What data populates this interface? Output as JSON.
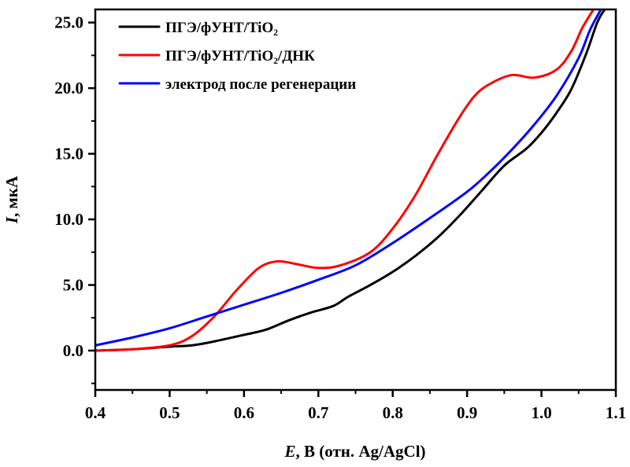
{
  "chart_data": {
    "type": "line",
    "xlabel": {
      "var": "E",
      "rest": ", В (отн. Ag/AgCl)"
    },
    "ylabel": {
      "var": "I",
      "rest": ", мкА"
    },
    "xlim": [
      0.4,
      1.1
    ],
    "ylim": [
      -3.0,
      26.0
    ],
    "x_ticks": [
      "0.4",
      "0.5",
      "0.6",
      "0.7",
      "0.8",
      "0.9",
      "1.0",
      "1.1"
    ],
    "y_ticks": [
      "0.0",
      "5.0",
      "10.0",
      "15.0",
      "20.0",
      "25.0"
    ],
    "grid": false,
    "legend_position": "top-left",
    "series": [
      {
        "name": "ПГЭ/фУНТ/TiO₂",
        "color": "#000000",
        "points": [
          [
            0.4,
            0.0
          ],
          [
            0.45,
            0.1
          ],
          [
            0.5,
            0.3
          ],
          [
            0.53,
            0.4
          ],
          [
            0.56,
            0.7
          ],
          [
            0.6,
            1.2
          ],
          [
            0.63,
            1.6
          ],
          [
            0.66,
            2.3
          ],
          [
            0.69,
            2.9
          ],
          [
            0.72,
            3.4
          ],
          [
            0.74,
            4.1
          ],
          [
            0.77,
            5.0
          ],
          [
            0.8,
            6.0
          ],
          [
            0.83,
            7.2
          ],
          [
            0.86,
            8.6
          ],
          [
            0.89,
            10.3
          ],
          [
            0.92,
            12.2
          ],
          [
            0.95,
            14.1
          ],
          [
            0.98,
            15.4
          ],
          [
            1.0,
            16.6
          ],
          [
            1.02,
            18.1
          ],
          [
            1.04,
            19.9
          ],
          [
            1.06,
            22.6
          ],
          [
            1.075,
            25.0
          ],
          [
            1.085,
            26.0
          ]
        ]
      },
      {
        "name": "ПГЭ/фУНТ/TiO₂/ДНК",
        "color": "#ff0000",
        "points": [
          [
            0.4,
            0.0
          ],
          [
            0.45,
            0.1
          ],
          [
            0.5,
            0.4
          ],
          [
            0.53,
            1.1
          ],
          [
            0.56,
            2.6
          ],
          [
            0.59,
            4.6
          ],
          [
            0.62,
            6.3
          ],
          [
            0.645,
            6.8
          ],
          [
            0.67,
            6.6
          ],
          [
            0.7,
            6.3
          ],
          [
            0.73,
            6.5
          ],
          [
            0.77,
            7.5
          ],
          [
            0.8,
            9.3
          ],
          [
            0.83,
            11.8
          ],
          [
            0.86,
            14.9
          ],
          [
            0.89,
            17.8
          ],
          [
            0.91,
            19.4
          ],
          [
            0.93,
            20.3
          ],
          [
            0.96,
            21.0
          ],
          [
            0.99,
            20.8
          ],
          [
            1.02,
            21.4
          ],
          [
            1.04,
            22.8
          ],
          [
            1.055,
            24.6
          ],
          [
            1.07,
            26.0
          ]
        ]
      },
      {
        "name": "электрод после регенерации",
        "color": "#0000ff",
        "points": [
          [
            0.4,
            0.4
          ],
          [
            0.45,
            1.0
          ],
          [
            0.5,
            1.7
          ],
          [
            0.55,
            2.6
          ],
          [
            0.6,
            3.5
          ],
          [
            0.65,
            4.4
          ],
          [
            0.7,
            5.4
          ],
          [
            0.75,
            6.5
          ],
          [
            0.8,
            8.2
          ],
          [
            0.85,
            10.1
          ],
          [
            0.9,
            12.1
          ],
          [
            0.93,
            13.6
          ],
          [
            0.96,
            15.3
          ],
          [
            0.99,
            17.2
          ],
          [
            1.02,
            19.4
          ],
          [
            1.05,
            22.3
          ],
          [
            1.065,
            24.4
          ],
          [
            1.08,
            26.0
          ]
        ]
      }
    ]
  }
}
